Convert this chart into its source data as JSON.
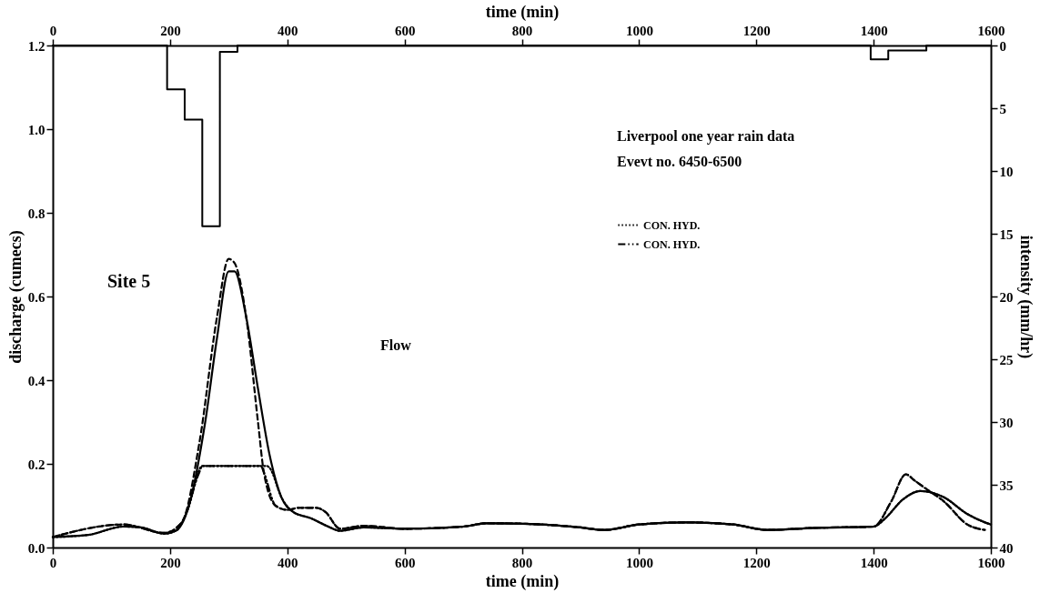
{
  "chart_data": {
    "type": "line",
    "xlabel": "time (min)",
    "x2label": "time (min)",
    "ylabel": "discharge (cumecs)",
    "y2label": "intensity (mm/hr)",
    "xlim": [
      0,
      1600
    ],
    "xticks": [
      0,
      200,
      400,
      600,
      800,
      1000,
      1200,
      1400,
      1600
    ],
    "x2lim": [
      0,
      1600
    ],
    "x2ticks": [
      0,
      200,
      400,
      600,
      800,
      1000,
      1200,
      1400,
      1600
    ],
    "ylim": [
      0,
      1.2
    ],
    "yticks": [
      {
        "value": 0,
        "label": "0.0"
      },
      0.2,
      0.4,
      0.6,
      0.8,
      {
        "value": 1,
        "label": "1.0"
      },
      1.2
    ],
    "y2lim": [
      40,
      0
    ],
    "y2ticks": [
      0,
      5,
      10,
      15,
      20,
      25,
      30,
      35,
      40
    ],
    "grid": false,
    "legend": "top right",
    "annotations": [
      "Liverpool one year rain data",
      "Evevt no. 6450-6500",
      "Site 5",
      "Flow"
    ],
    "series": [
      {
        "color": "#000000",
        "line_style": "solid",
        "x": [
          0,
          60,
          120,
          150,
          190,
          210,
          230,
          260,
          280,
          300,
          310,
          330,
          350,
          370,
          390,
          410,
          440,
          470,
          490,
          530,
          600,
          700,
          740,
          800,
          900,
          940,
          1000,
          1080,
          1160,
          1220,
          1300,
          1400,
          1420,
          1450,
          1480,
          1520,
          1560,
          1590,
          1600
        ],
        "values": [
          0.025,
          0.03,
          0.05,
          0.048,
          0.033,
          0.04,
          0.09,
          0.3,
          0.5,
          0.66,
          0.66,
          0.55,
          0.38,
          0.22,
          0.12,
          0.085,
          0.07,
          0.05,
          0.04,
          0.048,
          0.045,
          0.05,
          0.058,
          0.057,
          0.048,
          0.042,
          0.055,
          0.06,
          0.055,
          0.042,
          0.047,
          0.05,
          0.07,
          0.115,
          0.135,
          0.12,
          0.08,
          0.06,
          0.055
        ]
      },
      {
        "name": "CON. HYD.",
        "color": "#000000",
        "line_style": "dotted",
        "x": [
          0,
          60,
          120,
          150,
          190,
          210,
          230,
          255,
          300,
          365,
          370,
          390,
          410,
          440,
          470,
          490,
          530,
          600,
          700,
          740,
          800,
          900,
          940,
          1000,
          1080,
          1160,
          1220,
          1300,
          1400,
          1420,
          1450,
          1480,
          1520,
          1560,
          1590,
          1600
        ],
        "values": [
          0.025,
          0.03,
          0.05,
          0.048,
          0.033,
          0.04,
          0.09,
          0.195,
          0.195,
          0.195,
          0.19,
          0.12,
          0.085,
          0.07,
          0.05,
          0.04,
          0.048,
          0.045,
          0.05,
          0.058,
          0.057,
          0.048,
          0.042,
          0.055,
          0.06,
          0.055,
          0.042,
          0.047,
          0.05,
          0.07,
          0.115,
          0.135,
          0.12,
          0.08,
          0.06,
          0.055
        ]
      },
      {
        "color": "#000000",
        "line_style": "dashed",
        "x": [
          0,
          120,
          190,
          220,
          250,
          280,
          300,
          310,
          330,
          350,
          360,
          380,
          400,
          420,
          450,
          465,
          490,
          530,
          600,
          700,
          740,
          800,
          900,
          940,
          1000,
          1080,
          1160,
          1220,
          1300,
          1400,
          1430,
          1455,
          1470,
          1490,
          1520,
          1560,
          1590
        ],
        "values": [
          0.025,
          0.055,
          0.035,
          0.06,
          0.25,
          0.55,
          0.69,
          0.68,
          0.55,
          0.3,
          0.18,
          0.1,
          0.09,
          0.095,
          0.095,
          0.085,
          0.045,
          0.052,
          0.045,
          0.05,
          0.058,
          0.057,
          0.048,
          0.042,
          0.055,
          0.06,
          0.055,
          0.042,
          0.047,
          0.05,
          0.11,
          0.175,
          0.16,
          0.14,
          0.11,
          0.055,
          0.042
        ]
      },
      {
        "name": "CON. HYD.",
        "color": "#000000",
        "line_style": "dashdot",
        "x": [
          0,
          120,
          190,
          220,
          250,
          255,
          300,
          355,
          360,
          380,
          400,
          420,
          450,
          465,
          490,
          530,
          600,
          700,
          740,
          800,
          900,
          940,
          1000,
          1080,
          1160,
          1220,
          1300,
          1400,
          1430,
          1455,
          1470,
          1490,
          1520,
          1560,
          1590
        ],
        "values": [
          0.025,
          0.055,
          0.035,
          0.06,
          0.18,
          0.195,
          0.195,
          0.195,
          0.18,
          0.1,
          0.09,
          0.095,
          0.095,
          0.085,
          0.045,
          0.052,
          0.045,
          0.05,
          0.058,
          0.057,
          0.048,
          0.042,
          0.055,
          0.06,
          0.055,
          0.042,
          0.047,
          0.05,
          0.11,
          0.175,
          0.16,
          0.14,
          0.11,
          0.055,
          0.042
        ]
      },
      {
        "type": "step",
        "axis": "y2",
        "color": "#000000",
        "line_style": "solid",
        "x": [
          0,
          195,
          225,
          255,
          285,
          315,
          1395,
          1425,
          1490,
          1600
        ],
        "values": [
          0,
          3.5,
          5.9,
          14.4,
          0.5,
          0,
          1.1,
          0.4,
          0,
          0
        ]
      }
    ]
  }
}
